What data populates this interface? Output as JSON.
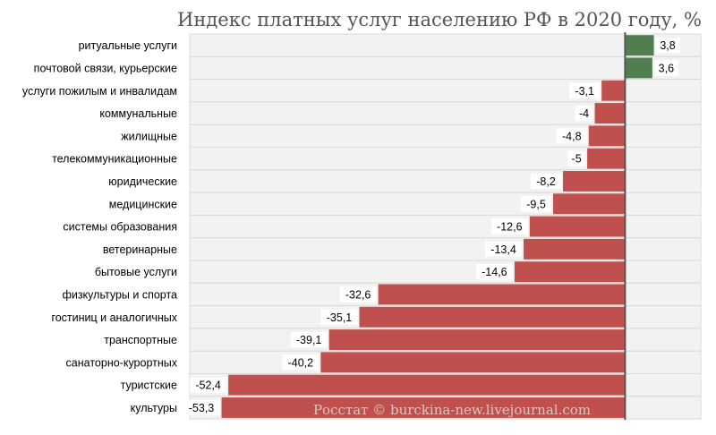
{
  "chart_data": {
    "type": "bar",
    "orientation": "horizontal",
    "title": "Индекс платных услуг населению РФ в 2020 году, %",
    "watermark": "Росстат © burckina-new.livejournal.com",
    "categories": [
      "ритуальные услуги",
      "почтовой связи, курьерские",
      "услуги пожилым и инвалидам",
      "коммунальные",
      "жилищные",
      "телекоммуникационные",
      "юридические",
      "медицинские",
      "системы образования",
      "ветеринарные",
      "бытовые услуги",
      "физкультуры и спорта",
      "гостиниц и аналогичных",
      "транспортные",
      "санаторно-курортных",
      "туристские",
      "культуры"
    ],
    "values": [
      3.8,
      3.6,
      -3.1,
      -4,
      -4.8,
      -5,
      -8.2,
      -9.5,
      -12.6,
      -13.4,
      -14.6,
      -32.6,
      -35.1,
      -39.1,
      -40.2,
      -52.4,
      -53.3
    ],
    "value_labels": [
      "3,8",
      "3,6",
      "-3,1",
      "-4",
      "-4,8",
      "-5",
      "-8,2",
      "-9,5",
      "-12,6",
      "-13,4",
      "-14,6",
      "-32,6",
      "-35,1",
      "-39,1",
      "-40,2",
      "-52,4",
      "-53,3"
    ],
    "xlim": [
      -57.5,
      10
    ],
    "grid": false,
    "legend": "none",
    "colors": {
      "positive": "#4f7f4f",
      "negative": "#c0504d",
      "band": "#f2f2f2",
      "band_border": "#d9d9d9",
      "axis": "#555555"
    }
  }
}
